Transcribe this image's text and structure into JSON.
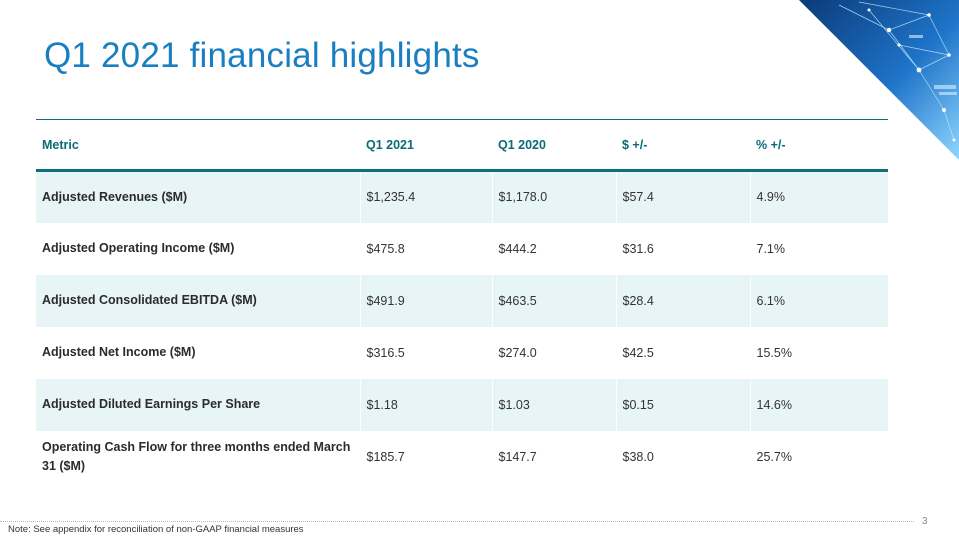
{
  "slide": {
    "title": "Q1 2021 financial highlights",
    "page_number": "3",
    "note": "Note: See appendix for reconciliation of non-GAAP financial measures"
  },
  "colors": {
    "title": "#1a7fc1",
    "header_text": "#0b6b76",
    "rule": "#0f6e78",
    "row_shade": "#e8f5f6"
  },
  "table": {
    "headers": [
      "Metric",
      "Q1 2021",
      "Q1 2020",
      "$ +/-",
      "% +/-"
    ],
    "rows": [
      [
        "Adjusted Revenues ($M)",
        "$1,235.4",
        "$1,178.0",
        "$57.4",
        "4.9%"
      ],
      [
        "Adjusted Operating Income ($M)",
        "$475.8",
        "$444.2",
        "$31.6",
        "7.1%"
      ],
      [
        "Adjusted Consolidated EBITDA ($M)",
        "$491.9",
        "$463.5",
        "$28.4",
        "6.1%"
      ],
      [
        "Adjusted Net Income ($M)",
        "$316.5",
        "$274.0",
        "$42.5",
        "15.5%"
      ],
      [
        "Adjusted Diluted Earnings Per Share",
        "$1.18",
        "$1.03",
        "$0.15",
        "14.6%"
      ],
      [
        "Operating Cash Flow for three months ended March 31 ($M)",
        "$185.7",
        "$147.7",
        "$38.0",
        "25.7%"
      ]
    ]
  }
}
